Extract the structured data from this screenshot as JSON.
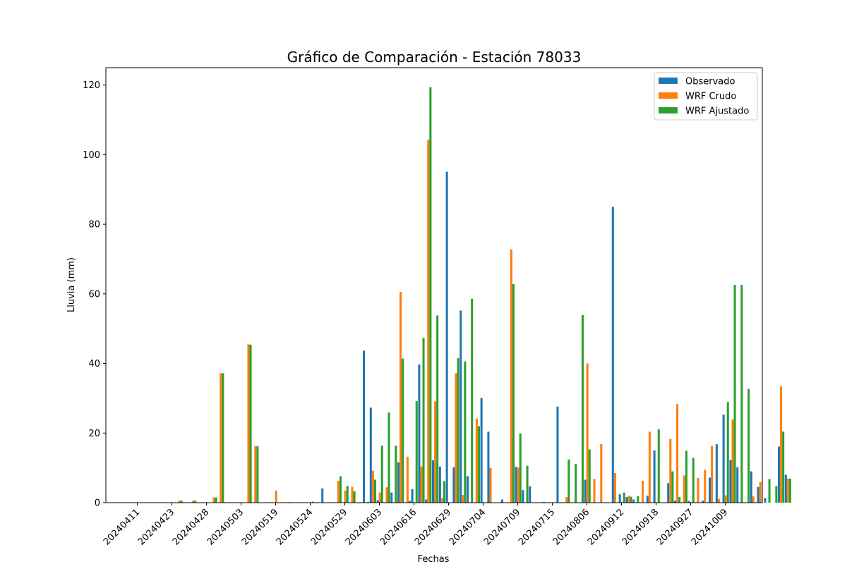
{
  "chart_data": {
    "type": "bar",
    "title": "Gráfico de Comparación - Estación 78033",
    "xlabel": "Fechas",
    "ylabel": "Lluvia (mm)",
    "ylim": [
      0,
      125
    ],
    "yticks": [
      0,
      20,
      40,
      60,
      80,
      100,
      120
    ],
    "grid": false,
    "legend_position": "top-right",
    "x_tick_labels": [
      "20240411",
      "20240423",
      "20240428",
      "20240503",
      "20240519",
      "20240524",
      "20240529",
      "20240603",
      "20240616",
      "20240629",
      "20240704",
      "20240709",
      "20240715",
      "20240806",
      "20240912",
      "20240918",
      "20240927",
      "20241009"
    ],
    "x_tick_every": 5,
    "series": [
      {
        "name": "Observado",
        "color": "#1f77b4",
        "values": [
          0,
          0,
          0,
          0,
          0,
          0,
          0,
          0,
          0,
          0,
          0,
          0,
          0,
          0,
          0,
          0,
          0,
          0,
          0,
          0,
          0,
          0,
          0,
          0,
          0,
          0,
          0,
          4.1,
          0,
          0,
          0,
          0,
          0,
          43.7,
          27.3,
          0.7,
          0,
          2.9,
          11.6,
          0,
          3.9,
          39.7,
          0.9,
          12.2,
          10.4,
          95.1,
          10.2,
          55.2,
          7.6,
          0,
          30.1,
          20.4,
          0,
          0.9,
          0,
          10.3,
          3.6,
          4.7,
          0,
          0.2,
          0,
          27.6,
          0,
          0,
          0,
          6.6,
          0,
          0,
          0,
          85,
          2.4,
          1.6,
          0.9,
          0,
          2.0,
          15,
          0,
          5.6,
          0.6,
          0,
          0.5,
          0,
          0.6,
          7.2,
          16.8,
          25.3,
          12.3,
          10.2,
          0,
          9.0,
          4.5,
          1.3,
          0,
          16.1,
          8.0
        ]
      },
      {
        "name": "WRF Crudo",
        "color": "#ff7f0e",
        "values": [
          0,
          0,
          0,
          0,
          0.1,
          0,
          0.6,
          0,
          0.6,
          0,
          0,
          1.5,
          37.2,
          0,
          0,
          0,
          45.5,
          16.2,
          0,
          0,
          3.5,
          0,
          0.2,
          0,
          0,
          0,
          0,
          0,
          0,
          6.3,
          3.5,
          4.5,
          0,
          0,
          9.2,
          2.9,
          4.4,
          0,
          60.6,
          13.2,
          0,
          10.4,
          104.3,
          29.1,
          1.3,
          0,
          37.2,
          2.2,
          0,
          24.2,
          0,
          10,
          0,
          0,
          72.8,
          10.1,
          0,
          0,
          0,
          0,
          0,
          0,
          1.6,
          0,
          0,
          40.0,
          6.8,
          16.8,
          0,
          8.5,
          0,
          2.0,
          0,
          6.3,
          20.4,
          0,
          0,
          18.3,
          28.3,
          7.8,
          0,
          7.1,
          9.5,
          16.3,
          1.1,
          2.1,
          23.9,
          0,
          0,
          1.8,
          5.9,
          0,
          0,
          33.4,
          6.9
        ]
      },
      {
        "name": "WRF Ajustado",
        "color": "#2ca02c",
        "values": [
          0,
          0,
          0,
          0,
          0,
          0,
          0.6,
          0,
          0.6,
          0,
          0,
          1.5,
          37.2,
          0,
          0,
          0,
          45.4,
          16.2,
          0,
          0,
          0,
          0,
          0,
          0,
          0,
          0.3,
          0,
          0,
          0,
          7.6,
          4.8,
          3.3,
          0,
          0.2,
          6.6,
          16.4,
          25.9,
          16.4,
          41.4,
          0.5,
          29.2,
          47.3,
          119.4,
          53.8,
          6.2,
          0,
          41.5,
          40.6,
          58.6,
          22.0,
          0,
          0,
          0,
          0,
          62.8,
          19.9,
          10.6,
          0,
          0,
          0,
          0,
          0,
          12.4,
          11.1,
          53.9,
          15.3,
          0,
          0,
          0,
          0,
          2.9,
          1.7,
          1.9,
          0,
          0,
          21.1,
          0,
          9.0,
          1.6,
          14.9,
          12.9,
          0,
          0,
          0,
          0,
          28.9,
          62.6,
          62.6,
          32.7,
          0,
          0,
          6.8,
          4.8,
          20.4,
          6.9
        ]
      }
    ]
  }
}
